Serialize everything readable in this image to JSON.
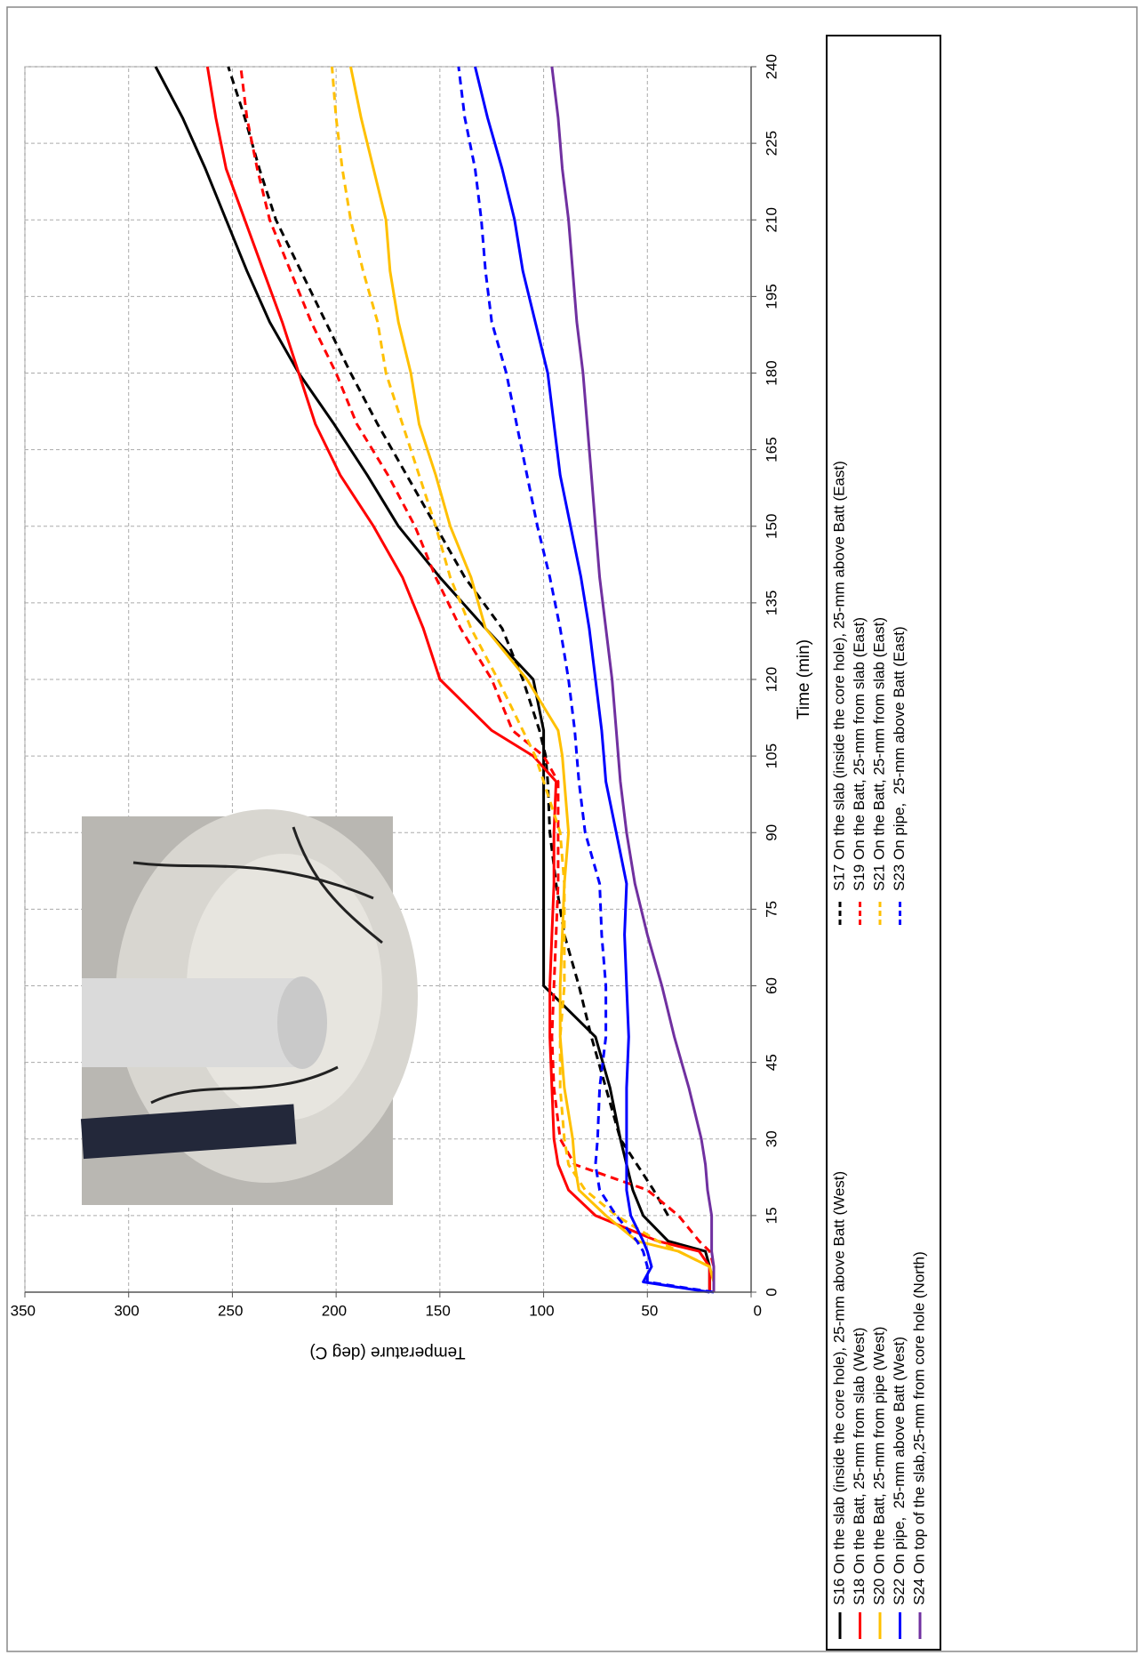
{
  "chart_data": {
    "type": "line",
    "x_label": "Time (min)",
    "y_label": "Temperature (deg C)",
    "x": [
      0,
      2,
      5,
      8,
      10,
      15,
      20,
      25,
      30,
      40,
      50,
      60,
      70,
      80,
      90,
      100,
      105,
      110,
      120,
      130,
      140,
      150,
      160,
      170,
      180,
      190,
      200,
      210,
      220,
      230,
      240
    ],
    "xlim": [
      0,
      240
    ],
    "xticks": [
      0,
      15,
      30,
      45,
      60,
      75,
      90,
      105,
      120,
      135,
      150,
      165,
      180,
      195,
      210,
      225,
      240
    ],
    "ylim": [
      0,
      350
    ],
    "yticks": [
      0,
      50,
      100,
      150,
      200,
      250,
      300,
      350
    ],
    "grid": true,
    "series": [
      {
        "name": "S16 On the slab (inside the core hole), 25-mm above Batt (West)",
        "color": "#000000",
        "style": "solid",
        "values": [
          20,
          20,
          20,
          22,
          40,
          52,
          57,
          60,
          63,
          68,
          75,
          100,
          100,
          100,
          100,
          100,
          100,
          100,
          105,
          128,
          150,
          170,
          185,
          201,
          218,
          232,
          243,
          253,
          263,
          274,
          287
        ]
      },
      {
        "name": "S17 On the slab (inside the core hole), 25-mm above Batt (East)",
        "color": "#000000",
        "style": "dashed",
        "values": [
          null,
          null,
          null,
          null,
          null,
          40,
          47,
          55,
          63,
          70,
          77,
          83,
          90,
          94,
          97,
          98,
          99,
          102,
          110,
          120,
          138,
          152,
          166,
          180,
          193,
          205,
          217,
          229,
          237,
          244,
          252
        ]
      },
      {
        "name": "S18 On the Batt, 25-mm from slab (West)",
        "color": "#ff0000",
        "style": "solid",
        "values": [
          20,
          20,
          20,
          25,
          45,
          75,
          88,
          93,
          95,
          96,
          97,
          97,
          96,
          95,
          95,
          94,
          105,
          125,
          150,
          158,
          168,
          182,
          198,
          210,
          218,
          226,
          235,
          244,
          253,
          258,
          262
        ]
      },
      {
        "name": "S19 On the Batt, 25-mm from slab (East)",
        "color": "#ff0000",
        "style": "dashed",
        "values": [
          18,
          18,
          18,
          20,
          25,
          35,
          50,
          85,
          92,
          95,
          96,
          95,
          94,
          93,
          93,
          93,
          100,
          115,
          125,
          140,
          152,
          162,
          175,
          190,
          200,
          212,
          222,
          232,
          238,
          243,
          246
        ]
      },
      {
        "name": "S20 On the Batt, 25-mm from pipe (West)",
        "color": "#ffc000",
        "style": "solid",
        "values": [
          18,
          18,
          20,
          35,
          55,
          70,
          83,
          85,
          86,
          90,
          92,
          92,
          91,
          90,
          88,
          90,
          91,
          93,
          108,
          128,
          135,
          145,
          152,
          160,
          164,
          170,
          174,
          176,
          182,
          188,
          193
        ]
      },
      {
        "name": "S21 On the Batt, 25-mm from slab (East)",
        "color": "#ffc000",
        "style": "dashed",
        "values": [
          18,
          18,
          20,
          35,
          45,
          65,
          80,
          88,
          90,
          92,
          92,
          90,
          90,
          90,
          92,
          100,
          104,
          110,
          122,
          135,
          145,
          152,
          160,
          168,
          176,
          180,
          187,
          193,
          197,
          200,
          202
        ]
      },
      {
        "name": "S22 On pipe,  25-mm above Batt (West)",
        "color": "#0000ff",
        "style": "solid",
        "values": [
          20,
          52,
          48,
          50,
          52,
          58,
          60,
          60,
          60,
          60,
          59,
          60,
          61,
          60,
          65,
          70,
          71,
          72,
          75,
          78,
          82,
          87,
          92,
          95,
          98,
          104,
          110,
          114,
          120,
          127,
          133
        ]
      },
      {
        "name": "S23 On pipe,  25-mm above Batt (East)",
        "color": "#0000ff",
        "style": "dashed",
        "values": [
          18,
          50,
          50,
          52,
          55,
          65,
          73,
          75,
          74,
          73,
          70,
          70,
          72,
          73,
          80,
          83,
          84,
          85,
          88,
          92,
          97,
          103,
          108,
          113,
          118,
          125,
          128,
          130,
          133,
          138,
          141
        ]
      },
      {
        "name": "S24 On top of the slab,25-mm from core hole (North)",
        "color": "#7030a0",
        "style": "solid",
        "values": [
          18,
          18,
          18,
          19,
          19,
          19,
          21,
          22,
          24,
          30,
          37,
          43,
          50,
          56,
          60,
          63,
          64,
          65,
          67,
          70,
          73,
          75,
          77,
          79,
          81,
          84,
          86,
          88,
          91,
          93,
          96
        ]
      }
    ]
  }
}
